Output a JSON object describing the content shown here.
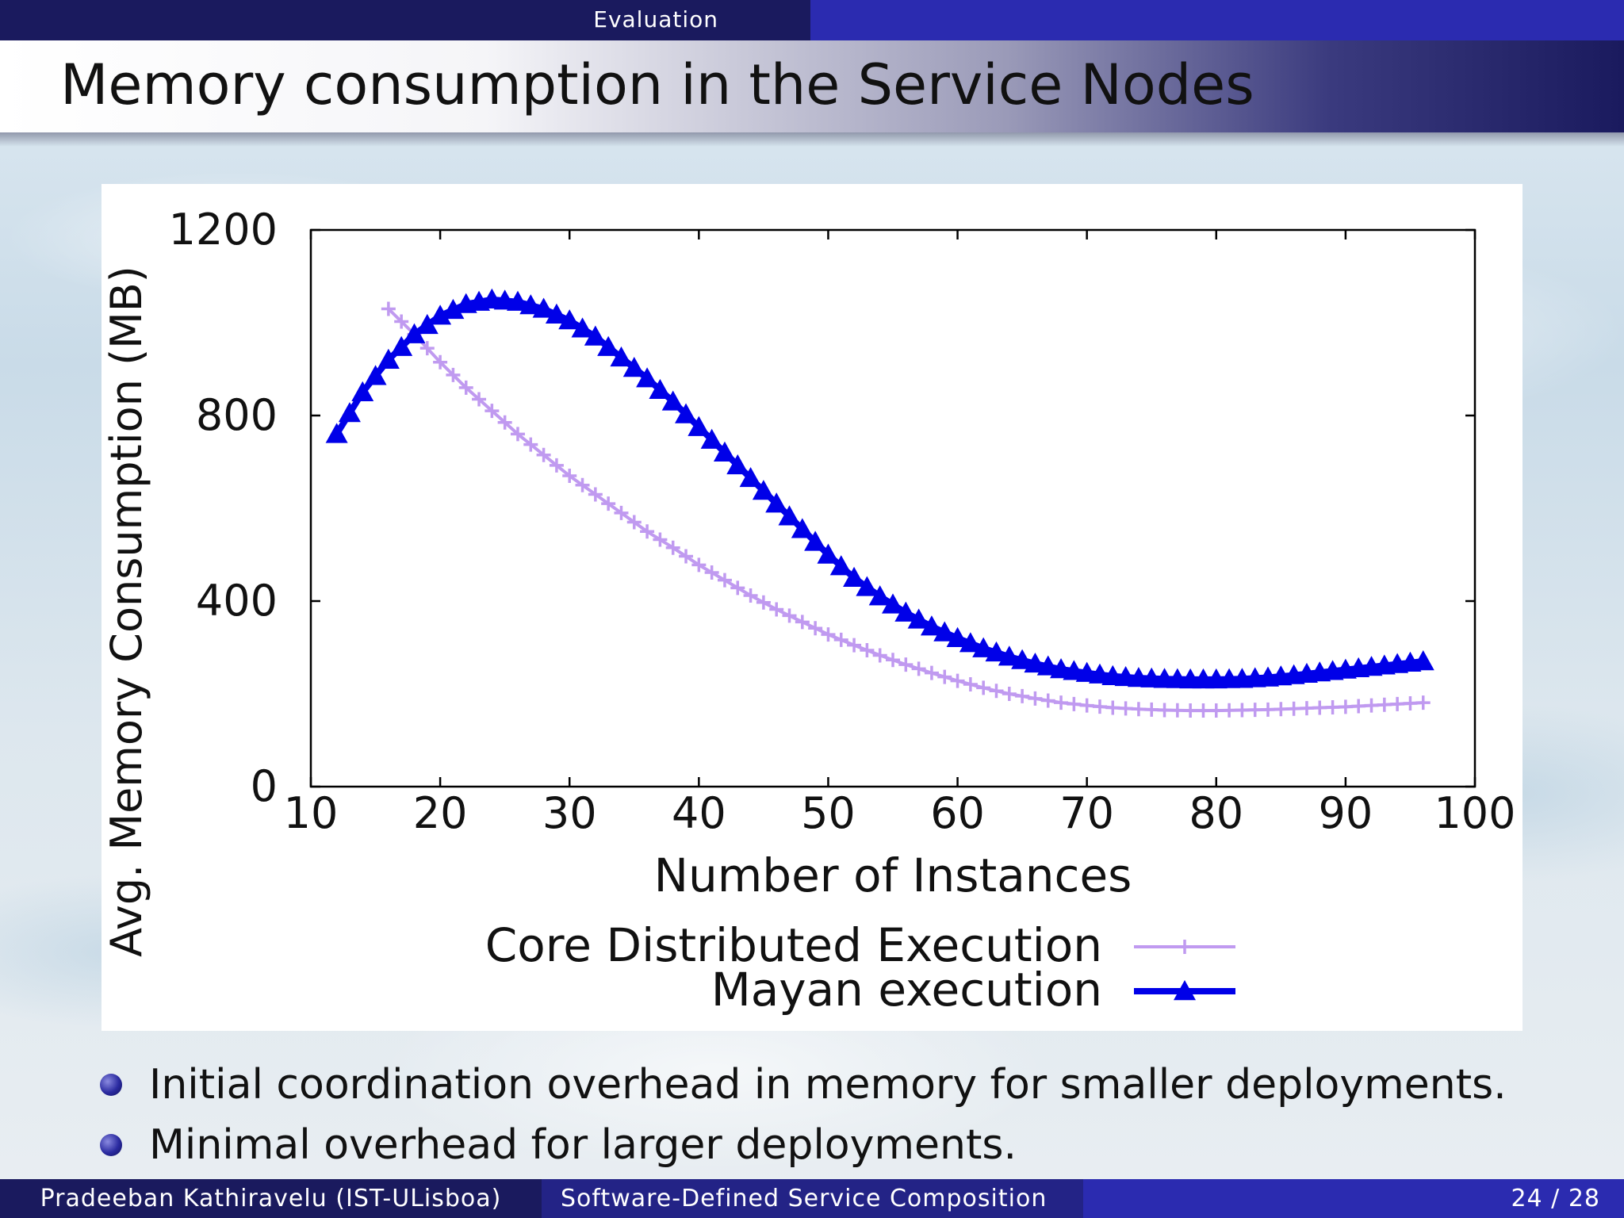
{
  "header": {
    "section": "Evaluation"
  },
  "slide": {
    "title": "Memory consumption in the Service Nodes"
  },
  "bullets": [
    "Initial coordination overhead in memory for smaller deployments.",
    "Minimal overhead for larger deployments."
  ],
  "footer": {
    "author": "Pradeeban Kathiravelu (IST-ULisboa)",
    "talk_title": "Software-Defined Service Composition",
    "page": "24 / 28"
  },
  "colors": {
    "core": "#c09af0",
    "mayan": "#0000e8",
    "header_dark": "#1a1a5e",
    "header_blue": "#2b2bb0"
  },
  "chart_data": {
    "type": "line",
    "xlabel": "Number of Instances",
    "ylabel": "Avg. Memory Consumption (MB)",
    "xlim": [
      10,
      100
    ],
    "ylim": [
      0,
      1200
    ],
    "xticks": [
      "10",
      "20",
      "30",
      "40",
      "50",
      "60",
      "70",
      "80",
      "90",
      "100"
    ],
    "yticks": [
      "0",
      "400",
      "800",
      "1200"
    ],
    "legend_position": "bottom-center",
    "grid": false,
    "series": [
      {
        "name": "Core Distributed Execution",
        "marker": "plus",
        "color": "#c09af0",
        "x": [
          16,
          18,
          20,
          22,
          24,
          26,
          28,
          30,
          32,
          34,
          36,
          38,
          40,
          42,
          44,
          46,
          48,
          50,
          52,
          54,
          56,
          58,
          60,
          62,
          64,
          66,
          68,
          70,
          72,
          74,
          76,
          78,
          80,
          82,
          84,
          86,
          88,
          90,
          92,
          94,
          96
        ],
        "y": [
          1030,
          975,
          915,
          860,
          810,
          760,
          715,
          670,
          630,
          590,
          550,
          515,
          478,
          445,
          412,
          382,
          355,
          328,
          305,
          283,
          263,
          245,
          228,
          213,
          200,
          190,
          181,
          175,
          170,
          167,
          165,
          164,
          164,
          165,
          166,
          168,
          170,
          172,
          175,
          178,
          181
        ]
      },
      {
        "name": "Mayan execution",
        "marker": "triangle",
        "color": "#0000e8",
        "x": [
          12,
          14,
          16,
          18,
          20,
          22,
          24,
          26,
          28,
          30,
          32,
          34,
          36,
          38,
          40,
          42,
          44,
          46,
          48,
          50,
          52,
          54,
          56,
          58,
          60,
          62,
          64,
          66,
          68,
          70,
          72,
          74,
          76,
          78,
          80,
          82,
          84,
          86,
          88,
          90,
          92,
          94,
          96
        ],
        "y": [
          760,
          850,
          920,
          975,
          1015,
          1040,
          1050,
          1045,
          1030,
          1005,
          970,
          925,
          880,
          830,
          775,
          720,
          665,
          610,
          555,
          500,
          450,
          410,
          375,
          345,
          320,
          298,
          280,
          265,
          253,
          245,
          238,
          234,
          232,
          231,
          231,
          232,
          235,
          240,
          246,
          252,
          258,
          264,
          270
        ]
      }
    ]
  }
}
